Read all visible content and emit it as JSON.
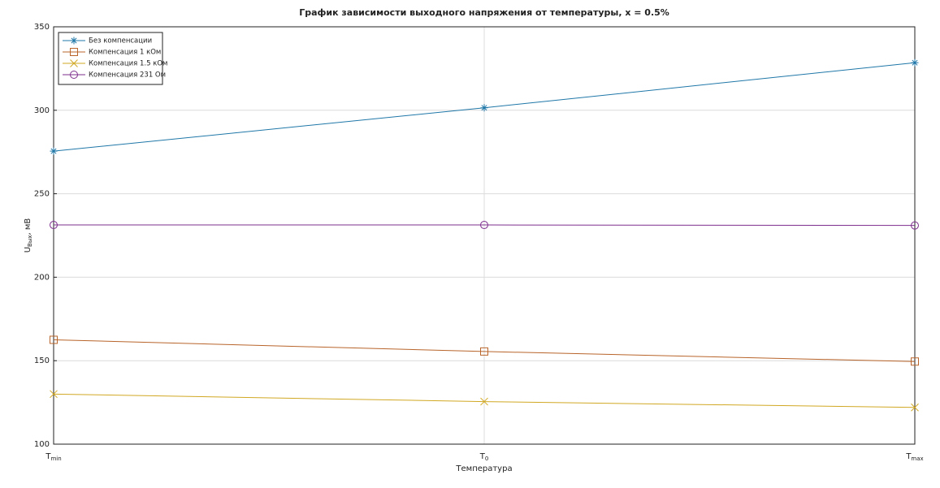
{
  "chart_data": {
    "type": "line",
    "title": "График зависимости выходного напряжения от температуры, x = 0.5%",
    "xlabel": "Температура",
    "ylabel": {
      "text": "U",
      "sub": "Вых",
      "rest": ", мВ"
    },
    "categories": [
      {
        "text": "T",
        "sub": "min"
      },
      {
        "text": "T",
        "sub": "0"
      },
      {
        "text": "T",
        "sub": "max"
      }
    ],
    "series": [
      {
        "name": "Без компенсации",
        "color": "#1f77a8",
        "marker": "star",
        "values": [
          275.5,
          301.5,
          328.5
        ]
      },
      {
        "name": "Компенсация 1 кОм",
        "color": "#b8642a",
        "marker": "square",
        "values": [
          162.5,
          155.5,
          149.5
        ]
      },
      {
        "name": "Компенсация 1.5 кОм",
        "color": "#d1a823",
        "marker": "x",
        "values": [
          130,
          125.5,
          122
        ]
      },
      {
        "name": "Компенсация 231 Ом",
        "color": "#7e2f8e",
        "marker": "circle",
        "values": [
          231.3,
          231.3,
          231
        ]
      }
    ],
    "ylim": [
      100,
      350
    ],
    "yticks": [
      100,
      150,
      200,
      250,
      300,
      350
    ],
    "grid": true,
    "legend": "upper left"
  }
}
